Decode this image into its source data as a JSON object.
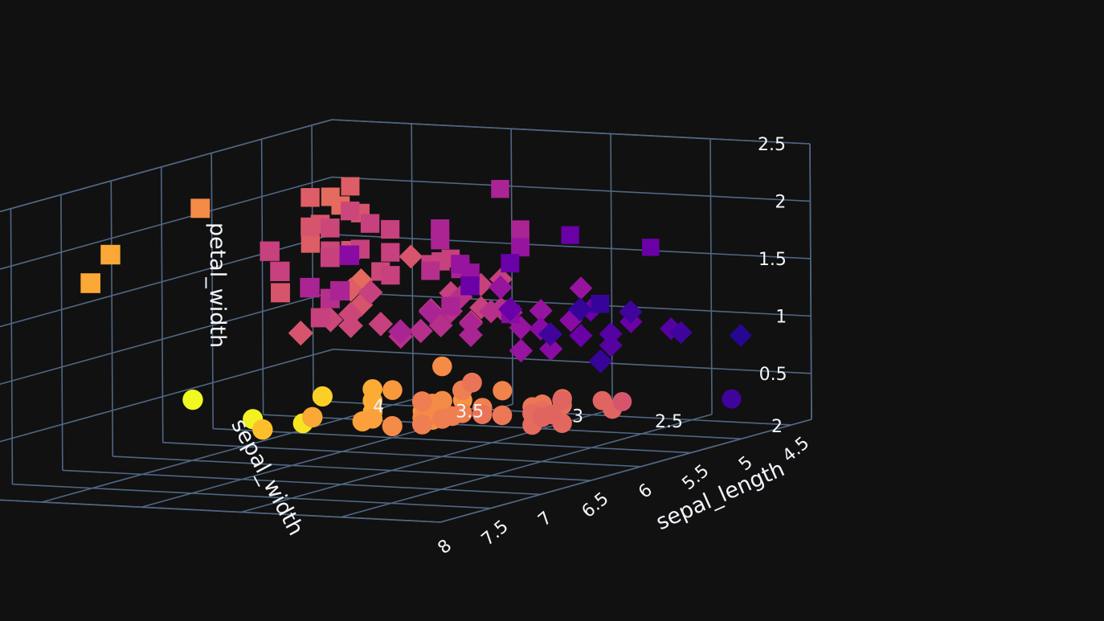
{
  "chart_data": {
    "type": "scatter",
    "dimensions": 3,
    "background": "#111111",
    "grid_color": "#506784",
    "text_color": "#f2f5fa",
    "grid": true,
    "legend": "none",
    "colorscale": [
      "#0d0887",
      "#46039f",
      "#7201a8",
      "#9c179e",
      "#bd3786",
      "#d8576b",
      "#ed7953",
      "#fb9f3a",
      "#fdca26",
      "#f0f921"
    ],
    "axes": {
      "x": {
        "title": "sepal_length",
        "range": [
          4.3,
          8.0
        ],
        "ticks": [
          4.5,
          5,
          5.5,
          6,
          6.5,
          7,
          7.5,
          8
        ],
        "tick_labels": [
          "4.5",
          "5",
          "5.5",
          "6",
          "6.5",
          "7",
          "7.5",
          "8"
        ]
      },
      "y": {
        "title": "sepal_width",
        "range": [
          2.0,
          4.4
        ],
        "ticks": [
          2,
          2.5,
          3,
          3.5,
          4
        ],
        "tick_labels": [
          "2",
          "2.5",
          "3",
          "3.5",
          "4"
        ]
      },
      "z": {
        "title": "petal_width",
        "range": [
          0.1,
          2.5
        ],
        "ticks": [
          0.5,
          1,
          1.5,
          2,
          2.5
        ],
        "tick_labels": [
          "0.5",
          "1",
          "1.5",
          "2",
          "2.5"
        ]
      }
    },
    "series": [
      {
        "symbol": "circle",
        "points": [
          [
            5.1,
            3.5,
            0.2,
            0.72
          ],
          [
            4.9,
            3.0,
            0.2,
            0.6
          ],
          [
            4.7,
            3.2,
            0.2,
            0.66
          ],
          [
            4.6,
            3.1,
            0.2,
            0.63
          ],
          [
            5.0,
            3.6,
            0.2,
            0.75
          ],
          [
            5.4,
            3.9,
            0.4,
            0.82
          ],
          [
            4.6,
            3.4,
            0.3,
            0.7
          ],
          [
            5.0,
            3.4,
            0.2,
            0.68
          ],
          [
            4.4,
            2.9,
            0.2,
            0.55
          ],
          [
            4.9,
            3.1,
            0.1,
            0.62
          ],
          [
            5.4,
            3.7,
            0.2,
            0.78
          ],
          [
            4.8,
            3.4,
            0.2,
            0.69
          ],
          [
            4.8,
            3.0,
            0.1,
            0.61
          ],
          [
            4.3,
            3.0,
            0.1,
            0.6
          ],
          [
            5.8,
            4.0,
            0.2,
            0.86
          ],
          [
            5.7,
            4.4,
            0.4,
            1.0
          ],
          [
            5.4,
            3.9,
            0.4,
            0.9
          ],
          [
            5.1,
            3.5,
            0.3,
            0.72
          ],
          [
            5.7,
            3.8,
            0.3,
            0.8
          ],
          [
            5.1,
            3.8,
            0.3,
            0.81
          ],
          [
            5.4,
            3.4,
            0.2,
            0.68
          ],
          [
            5.1,
            3.7,
            0.4,
            0.76
          ],
          [
            4.6,
            3.6,
            0.2,
            0.74
          ],
          [
            5.1,
            3.3,
            0.5,
            0.65
          ],
          [
            4.8,
            3.4,
            0.2,
            0.69
          ],
          [
            5.0,
            3.0,
            0.2,
            0.6
          ],
          [
            5.0,
            3.4,
            0.4,
            0.68
          ],
          [
            5.2,
            3.5,
            0.2,
            0.72
          ],
          [
            5.2,
            3.4,
            0.2,
            0.68
          ],
          [
            4.7,
            3.2,
            0.2,
            0.66
          ],
          [
            4.8,
            3.1,
            0.2,
            0.63
          ],
          [
            5.4,
            3.4,
            0.4,
            0.68
          ],
          [
            5.2,
            4.1,
            0.1,
            0.95
          ],
          [
            5.5,
            4.2,
            0.2,
            0.98
          ],
          [
            4.9,
            3.1,
            0.2,
            0.62
          ],
          [
            5.0,
            3.2,
            0.2,
            0.66
          ],
          [
            5.5,
            3.5,
            0.2,
            0.72
          ],
          [
            4.9,
            3.6,
            0.1,
            0.74
          ],
          [
            4.4,
            3.0,
            0.2,
            0.6
          ],
          [
            5.1,
            3.4,
            0.2,
            0.68
          ],
          [
            5.0,
            3.5,
            0.3,
            0.72
          ],
          [
            4.5,
            2.3,
            0.3,
            0.1
          ],
          [
            4.4,
            3.2,
            0.2,
            0.66
          ],
          [
            5.0,
            3.5,
            0.6,
            0.72
          ],
          [
            5.1,
            3.8,
            0.4,
            0.81
          ],
          [
            4.8,
            3.0,
            0.3,
            0.6
          ],
          [
            5.1,
            3.8,
            0.2,
            0.81
          ],
          [
            4.6,
            3.2,
            0.2,
            0.66
          ],
          [
            5.3,
            3.7,
            0.2,
            0.78
          ],
          [
            5.0,
            3.3,
            0.2,
            0.65
          ]
        ]
      },
      {
        "symbol": "diamond",
        "points": [
          [
            7.0,
            3.2,
            1.4,
            0.55
          ],
          [
            6.4,
            3.2,
            1.5,
            0.55
          ],
          [
            6.9,
            3.1,
            1.5,
            0.5
          ],
          [
            5.5,
            2.3,
            1.3,
            0.1
          ],
          [
            6.5,
            2.8,
            1.5,
            0.38
          ],
          [
            5.7,
            2.8,
            1.3,
            0.38
          ],
          [
            6.3,
            3.3,
            1.6,
            0.58
          ],
          [
            4.9,
            2.4,
            1.0,
            0.15
          ],
          [
            6.6,
            2.9,
            1.3,
            0.42
          ],
          [
            5.2,
            2.7,
            1.4,
            0.32
          ],
          [
            5.0,
            2.0,
            1.0,
            0.05
          ],
          [
            5.9,
            3.0,
            1.5,
            0.48
          ],
          [
            6.0,
            2.2,
            1.0,
            0.08
          ],
          [
            6.1,
            2.9,
            1.4,
            0.42
          ],
          [
            5.6,
            2.9,
            1.3,
            0.42
          ],
          [
            6.7,
            3.1,
            1.4,
            0.5
          ],
          [
            5.6,
            3.0,
            1.5,
            0.48
          ],
          [
            5.8,
            2.7,
            1.0,
            0.32
          ],
          [
            6.2,
            2.2,
            1.5,
            0.08
          ],
          [
            5.6,
            2.5,
            1.1,
            0.2
          ],
          [
            5.9,
            3.2,
            1.8,
            0.55
          ],
          [
            6.1,
            2.8,
            1.3,
            0.38
          ],
          [
            6.3,
            2.5,
            1.5,
            0.2
          ],
          [
            6.1,
            2.8,
            1.2,
            0.38
          ],
          [
            6.4,
            2.9,
            1.3,
            0.42
          ],
          [
            6.6,
            3.0,
            1.4,
            0.48
          ],
          [
            6.8,
            2.8,
            1.4,
            0.38
          ],
          [
            6.7,
            3.0,
            1.7,
            0.48
          ],
          [
            6.0,
            2.9,
            1.5,
            0.42
          ],
          [
            5.7,
            2.6,
            1.0,
            0.28
          ],
          [
            5.5,
            2.4,
            1.1,
            0.15
          ],
          [
            5.5,
            2.4,
            1.0,
            0.15
          ],
          [
            5.8,
            2.7,
            1.2,
            0.32
          ],
          [
            6.0,
            2.7,
            1.6,
            0.32
          ],
          [
            5.4,
            3.0,
            1.5,
            0.48
          ],
          [
            6.0,
            3.4,
            1.6,
            0.62
          ],
          [
            6.7,
            3.1,
            1.5,
            0.5
          ],
          [
            6.3,
            2.3,
            1.3,
            0.1
          ],
          [
            5.6,
            3.0,
            1.3,
            0.48
          ],
          [
            5.5,
            2.5,
            1.3,
            0.2
          ],
          [
            5.5,
            2.6,
            1.2,
            0.28
          ],
          [
            6.1,
            3.0,
            1.4,
            0.48
          ],
          [
            5.8,
            2.6,
            1.2,
            0.28
          ],
          [
            5.0,
            2.3,
            1.0,
            0.1
          ],
          [
            5.6,
            2.7,
            1.3,
            0.32
          ],
          [
            5.7,
            3.0,
            1.2,
            0.48
          ],
          [
            5.7,
            2.9,
            1.3,
            0.42
          ],
          [
            6.2,
            2.9,
            1.3,
            0.42
          ],
          [
            5.1,
            2.5,
            1.1,
            0.2
          ],
          [
            5.7,
            2.8,
            1.3,
            0.38
          ]
        ]
      },
      {
        "symbol": "square",
        "points": [
          [
            6.3,
            3.3,
            2.5,
            0.58
          ],
          [
            5.8,
            2.7,
            1.9,
            0.32
          ],
          [
            7.1,
            3.0,
            2.1,
            0.48
          ],
          [
            6.3,
            2.9,
            1.8,
            0.42
          ],
          [
            6.5,
            3.0,
            2.2,
            0.48
          ],
          [
            7.6,
            3.0,
            2.1,
            0.48
          ],
          [
            4.9,
            2.5,
            1.7,
            0.2
          ],
          [
            7.3,
            2.9,
            1.8,
            0.42
          ],
          [
            6.7,
            2.5,
            1.8,
            0.2
          ],
          [
            7.2,
            3.6,
            2.5,
            0.72
          ],
          [
            6.5,
            3.2,
            2.0,
            0.55
          ],
          [
            6.4,
            2.7,
            1.9,
            0.32
          ],
          [
            6.8,
            3.0,
            2.1,
            0.48
          ],
          [
            5.7,
            2.5,
            2.0,
            0.2
          ],
          [
            5.8,
            2.8,
            2.4,
            0.38
          ],
          [
            6.4,
            3.2,
            2.3,
            0.55
          ],
          [
            6.5,
            3.0,
            1.8,
            0.48
          ],
          [
            7.7,
            3.8,
            2.2,
            0.8
          ],
          [
            7.7,
            2.6,
            2.3,
            0.28
          ],
          [
            6.0,
            2.2,
            1.5,
            0.08
          ],
          [
            6.9,
            3.2,
            2.3,
            0.55
          ],
          [
            5.6,
            2.8,
            2.0,
            0.38
          ],
          [
            7.7,
            2.8,
            2.0,
            0.38
          ],
          [
            6.3,
            2.7,
            1.8,
            0.32
          ],
          [
            6.7,
            3.3,
            2.1,
            0.58
          ],
          [
            7.2,
            3.2,
            1.8,
            0.55
          ],
          [
            6.2,
            2.8,
            1.8,
            0.38
          ],
          [
            6.1,
            3.0,
            1.8,
            0.48
          ],
          [
            6.4,
            2.8,
            2.1,
            0.38
          ],
          [
            7.2,
            3.0,
            1.6,
            0.48
          ],
          [
            7.4,
            2.8,
            1.9,
            0.38
          ],
          [
            7.9,
            3.8,
            2.0,
            0.8
          ],
          [
            6.4,
            2.8,
            2.2,
            0.38
          ],
          [
            6.3,
            2.8,
            1.5,
            0.38
          ],
          [
            6.1,
            2.6,
            1.4,
            0.28
          ],
          [
            7.7,
            3.0,
            2.3,
            0.48
          ],
          [
            6.3,
            3.4,
            2.4,
            0.62
          ],
          [
            6.4,
            3.1,
            1.8,
            0.5
          ],
          [
            6.0,
            3.0,
            1.8,
            0.48
          ],
          [
            6.9,
            3.1,
            2.1,
            0.5
          ],
          [
            6.7,
            3.1,
            2.4,
            0.5
          ],
          [
            6.9,
            3.1,
            2.3,
            0.5
          ],
          [
            5.8,
            2.7,
            1.9,
            0.32
          ],
          [
            6.8,
            3.2,
            2.3,
            0.55
          ],
          [
            6.7,
            3.3,
            2.5,
            0.58
          ],
          [
            6.7,
            3.0,
            2.3,
            0.48
          ],
          [
            6.3,
            2.5,
            1.9,
            0.2
          ],
          [
            6.5,
            3.0,
            2.0,
            0.48
          ],
          [
            6.2,
            3.4,
            2.3,
            0.62
          ],
          [
            5.9,
            3.0,
            1.8,
            0.48
          ]
        ]
      }
    ]
  }
}
